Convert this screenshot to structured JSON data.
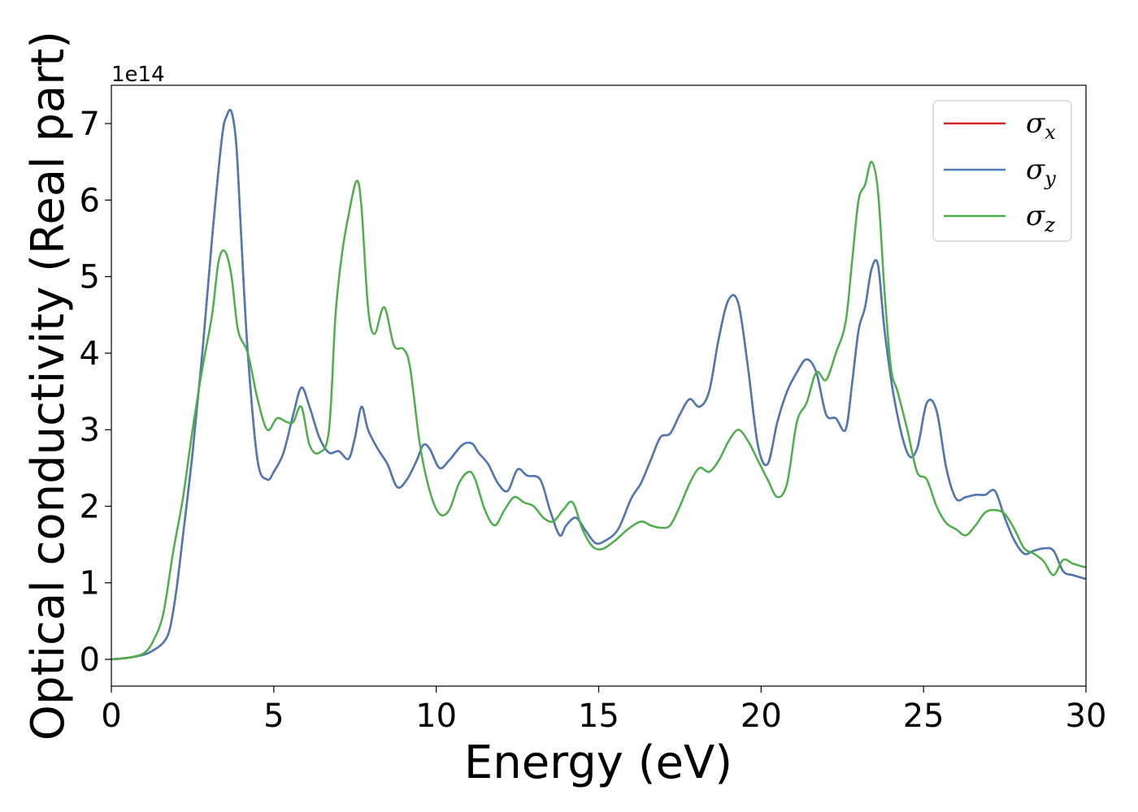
{
  "chart_data": {
    "type": "line",
    "xlabel": "Energy (eV)",
    "ylabel": "Optical conductivity (Real part)",
    "y_offset_label": "1e14",
    "xlim": [
      0,
      30
    ],
    "ylim": [
      -0.35,
      7.5
    ],
    "x_ticks": [
      0,
      5,
      10,
      15,
      20,
      25,
      30
    ],
    "y_ticks": [
      0,
      1,
      2,
      3,
      4,
      5,
      6,
      7
    ],
    "x_tick_labels": [
      "0",
      "5",
      "10",
      "15",
      "20",
      "25",
      "30"
    ],
    "y_tick_labels": [
      "0",
      "1",
      "2",
      "3",
      "4",
      "5",
      "6",
      "7"
    ],
    "grid": false,
    "legend_position": "top-right",
    "series": [
      {
        "name": "σx",
        "symbol": "σ",
        "subscript": "x",
        "color": "#d62728",
        "x": [
          0,
          0.5,
          1,
          1.3,
          1.6,
          1.8,
          2,
          2.2,
          2.5,
          2.8,
          3.1,
          3.4,
          3.55,
          3.7,
          3.85,
          4,
          4.2,
          4.5,
          4.8,
          5,
          5.3,
          5.6,
          5.85,
          6.1,
          6.4,
          6.7,
          7,
          7.3,
          7.5,
          7.7,
          7.9,
          8.2,
          8.5,
          8.8,
          9.1,
          9.4,
          9.6,
          9.8,
          10.1,
          10.4,
          10.8,
          11.1,
          11.3,
          11.6,
          11.9,
          12.2,
          12.5,
          12.8,
          13.2,
          13.5,
          13.8,
          14,
          14.3,
          14.6,
          14.9,
          15.2,
          15.6,
          16,
          16.3,
          16.6,
          16.9,
          17.2,
          17.5,
          17.8,
          18.1,
          18.4,
          18.7,
          19,
          19.3,
          19.6,
          19.9,
          20.2,
          20.5,
          20.8,
          21.1,
          21.4,
          21.7,
          22,
          22.3,
          22.6,
          22.8,
          23,
          23.2,
          23.4,
          23.6,
          23.8,
          24.1,
          24.5,
          24.8,
          25.1,
          25.4,
          25.7,
          26,
          26.3,
          26.6,
          26.9,
          27.2,
          27.5,
          27.8,
          28.1,
          28.4,
          28.7,
          29,
          29.3,
          29.6,
          30
        ],
        "y": [
          0,
          0.02,
          0.06,
          0.12,
          0.22,
          0.4,
          0.9,
          1.6,
          2.7,
          4.0,
          5.5,
          6.8,
          7.1,
          7.15,
          6.7,
          5.5,
          4.0,
          2.6,
          2.35,
          2.45,
          2.7,
          3.2,
          3.55,
          3.3,
          2.9,
          2.7,
          2.72,
          2.62,
          2.9,
          3.3,
          3.0,
          2.75,
          2.55,
          2.25,
          2.35,
          2.6,
          2.8,
          2.75,
          2.5,
          2.6,
          2.8,
          2.82,
          2.7,
          2.55,
          2.3,
          2.2,
          2.48,
          2.4,
          2.35,
          1.95,
          1.62,
          1.75,
          1.85,
          1.68,
          1.52,
          1.55,
          1.7,
          2.1,
          2.3,
          2.6,
          2.9,
          2.95,
          3.2,
          3.4,
          3.3,
          3.5,
          4.2,
          4.7,
          4.65,
          3.8,
          2.8,
          2.55,
          3.1,
          3.5,
          3.75,
          3.92,
          3.75,
          3.2,
          3.15,
          3.0,
          3.6,
          4.3,
          4.6,
          5.1,
          5.15,
          4.3,
          3.4,
          2.7,
          2.75,
          3.35,
          3.25,
          2.5,
          2.1,
          2.12,
          2.15,
          2.15,
          2.2,
          1.85,
          1.55,
          1.38,
          1.42,
          1.45,
          1.42,
          1.15,
          1.1,
          1.05
        ]
      },
      {
        "name": "σy",
        "symbol": "σ",
        "subscript": "y",
        "color": "#4a7bb7",
        "x": [
          0,
          0.5,
          1,
          1.3,
          1.6,
          1.8,
          2,
          2.2,
          2.5,
          2.8,
          3.1,
          3.4,
          3.55,
          3.7,
          3.85,
          4,
          4.2,
          4.5,
          4.8,
          5,
          5.3,
          5.6,
          5.85,
          6.1,
          6.4,
          6.7,
          7,
          7.3,
          7.5,
          7.7,
          7.9,
          8.2,
          8.5,
          8.8,
          9.1,
          9.4,
          9.6,
          9.8,
          10.1,
          10.4,
          10.8,
          11.1,
          11.3,
          11.6,
          11.9,
          12.2,
          12.5,
          12.8,
          13.2,
          13.5,
          13.8,
          14,
          14.3,
          14.6,
          14.9,
          15.2,
          15.6,
          16,
          16.3,
          16.6,
          16.9,
          17.2,
          17.5,
          17.8,
          18.1,
          18.4,
          18.7,
          19,
          19.3,
          19.6,
          19.9,
          20.2,
          20.5,
          20.8,
          21.1,
          21.4,
          21.7,
          22,
          22.3,
          22.6,
          22.8,
          23,
          23.2,
          23.4,
          23.6,
          23.8,
          24.1,
          24.5,
          24.8,
          25.1,
          25.4,
          25.7,
          26,
          26.3,
          26.6,
          26.9,
          27.2,
          27.5,
          27.8,
          28.1,
          28.4,
          28.7,
          29,
          29.3,
          29.6,
          30
        ],
        "y": [
          0,
          0.02,
          0.06,
          0.12,
          0.22,
          0.4,
          0.9,
          1.6,
          2.7,
          4.0,
          5.5,
          6.8,
          7.1,
          7.15,
          6.7,
          5.5,
          4.0,
          2.6,
          2.35,
          2.45,
          2.7,
          3.2,
          3.55,
          3.3,
          2.9,
          2.7,
          2.72,
          2.62,
          2.9,
          3.3,
          3.0,
          2.75,
          2.55,
          2.25,
          2.35,
          2.6,
          2.8,
          2.75,
          2.5,
          2.6,
          2.8,
          2.82,
          2.7,
          2.55,
          2.3,
          2.2,
          2.48,
          2.4,
          2.35,
          1.95,
          1.62,
          1.75,
          1.85,
          1.68,
          1.52,
          1.55,
          1.7,
          2.1,
          2.3,
          2.6,
          2.9,
          2.95,
          3.2,
          3.4,
          3.3,
          3.5,
          4.2,
          4.7,
          4.65,
          3.8,
          2.8,
          2.55,
          3.1,
          3.5,
          3.75,
          3.92,
          3.75,
          3.2,
          3.15,
          3.0,
          3.6,
          4.3,
          4.6,
          5.1,
          5.15,
          4.3,
          3.4,
          2.7,
          2.75,
          3.35,
          3.25,
          2.5,
          2.1,
          2.12,
          2.15,
          2.15,
          2.2,
          1.85,
          1.55,
          1.38,
          1.42,
          1.45,
          1.42,
          1.15,
          1.1,
          1.05
        ]
      },
      {
        "name": "σz",
        "symbol": "σ",
        "subscript": "z",
        "color": "#4daf4a",
        "x": [
          0,
          0.5,
          1,
          1.3,
          1.6,
          1.9,
          2.2,
          2.5,
          2.8,
          3.1,
          3.3,
          3.5,
          3.7,
          3.9,
          4.2,
          4.5,
          4.8,
          5.1,
          5.4,
          5.6,
          5.85,
          6.1,
          6.4,
          6.7,
          6.9,
          7.1,
          7.3,
          7.55,
          7.7,
          7.9,
          8.1,
          8.4,
          8.7,
          9.0,
          9.2,
          9.5,
          9.8,
          10.1,
          10.4,
          10.7,
          11.0,
          11.2,
          11.5,
          11.8,
          12.1,
          12.4,
          12.7,
          13.0,
          13.3,
          13.6,
          13.9,
          14.2,
          14.5,
          14.8,
          15.1,
          15.5,
          15.9,
          16.3,
          16.6,
          16.9,
          17.2,
          17.5,
          17.8,
          18.1,
          18.4,
          18.7,
          19.0,
          19.3,
          19.6,
          19.9,
          20.2,
          20.5,
          20.8,
          21.1,
          21.4,
          21.7,
          22.0,
          22.3,
          22.6,
          22.8,
          23.0,
          23.2,
          23.4,
          23.6,
          23.8,
          24.0,
          24.2,
          24.5,
          24.8,
          25.1,
          25.4,
          25.7,
          26.0,
          26.3,
          26.6,
          26.9,
          27.2,
          27.5,
          27.8,
          28.1,
          28.4,
          28.7,
          29.0,
          29.3,
          29.6,
          30
        ],
        "y": [
          0,
          0.02,
          0.08,
          0.25,
          0.6,
          1.4,
          2.1,
          3.0,
          3.8,
          4.5,
          5.2,
          5.33,
          5.0,
          4.3,
          4.0,
          3.4,
          3.0,
          3.15,
          3.1,
          3.1,
          3.3,
          2.8,
          2.7,
          3.0,
          4.5,
          5.3,
          5.8,
          6.25,
          5.9,
          4.6,
          4.25,
          4.6,
          4.1,
          4.05,
          3.8,
          2.8,
          2.2,
          1.9,
          1.95,
          2.3,
          2.45,
          2.35,
          1.95,
          1.75,
          1.95,
          2.12,
          2.05,
          2.0,
          1.85,
          1.8,
          1.95,
          2.05,
          1.7,
          1.48,
          1.44,
          1.55,
          1.7,
          1.8,
          1.75,
          1.72,
          1.75,
          2.0,
          2.3,
          2.5,
          2.45,
          2.6,
          2.85,
          3.0,
          2.85,
          2.6,
          2.35,
          2.12,
          2.3,
          3.1,
          3.35,
          3.75,
          3.65,
          4.0,
          4.4,
          5.2,
          6.0,
          6.2,
          6.5,
          6.1,
          4.8,
          3.8,
          3.5,
          3.0,
          2.45,
          2.35,
          2.0,
          1.78,
          1.7,
          1.62,
          1.75,
          1.92,
          1.95,
          1.9,
          1.7,
          1.45,
          1.38,
          1.28,
          1.1,
          1.3,
          1.25,
          1.2
        ]
      }
    ]
  }
}
